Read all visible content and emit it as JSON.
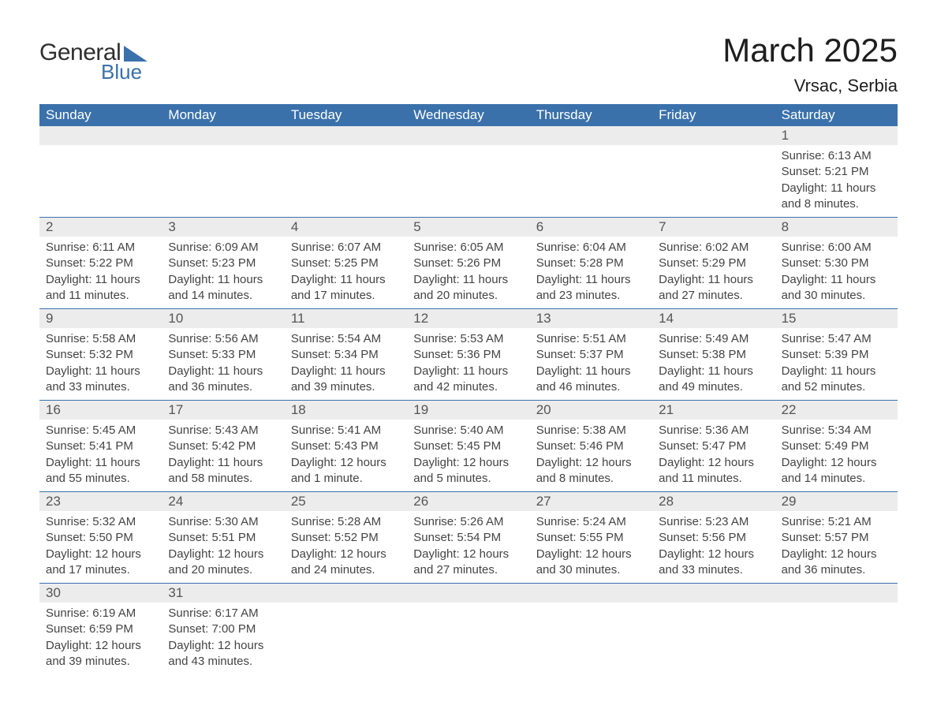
{
  "brand": {
    "word1": "General",
    "word2": "Blue"
  },
  "title": "March 2025",
  "location": "Vrsac, Serbia",
  "colors": {
    "header_bg": "#3a71ab",
    "header_fg": "#ffffff",
    "row_bg": "#ececec",
    "text": "#444444",
    "rule": "#3a71ab"
  },
  "columns": [
    "Sunday",
    "Monday",
    "Tuesday",
    "Wednesday",
    "Thursday",
    "Friday",
    "Saturday"
  ],
  "weeks": [
    [
      null,
      null,
      null,
      null,
      null,
      null,
      {
        "n": "1",
        "sr": "Sunrise: 6:13 AM",
        "ss": "Sunset: 5:21 PM",
        "dl": "Daylight: 11 hours and 8 minutes."
      }
    ],
    [
      {
        "n": "2",
        "sr": "Sunrise: 6:11 AM",
        "ss": "Sunset: 5:22 PM",
        "dl": "Daylight: 11 hours and 11 minutes."
      },
      {
        "n": "3",
        "sr": "Sunrise: 6:09 AM",
        "ss": "Sunset: 5:23 PM",
        "dl": "Daylight: 11 hours and 14 minutes."
      },
      {
        "n": "4",
        "sr": "Sunrise: 6:07 AM",
        "ss": "Sunset: 5:25 PM",
        "dl": "Daylight: 11 hours and 17 minutes."
      },
      {
        "n": "5",
        "sr": "Sunrise: 6:05 AM",
        "ss": "Sunset: 5:26 PM",
        "dl": "Daylight: 11 hours and 20 minutes."
      },
      {
        "n": "6",
        "sr": "Sunrise: 6:04 AM",
        "ss": "Sunset: 5:28 PM",
        "dl": "Daylight: 11 hours and 23 minutes."
      },
      {
        "n": "7",
        "sr": "Sunrise: 6:02 AM",
        "ss": "Sunset: 5:29 PM",
        "dl": "Daylight: 11 hours and 27 minutes."
      },
      {
        "n": "8",
        "sr": "Sunrise: 6:00 AM",
        "ss": "Sunset: 5:30 PM",
        "dl": "Daylight: 11 hours and 30 minutes."
      }
    ],
    [
      {
        "n": "9",
        "sr": "Sunrise: 5:58 AM",
        "ss": "Sunset: 5:32 PM",
        "dl": "Daylight: 11 hours and 33 minutes."
      },
      {
        "n": "10",
        "sr": "Sunrise: 5:56 AM",
        "ss": "Sunset: 5:33 PM",
        "dl": "Daylight: 11 hours and 36 minutes."
      },
      {
        "n": "11",
        "sr": "Sunrise: 5:54 AM",
        "ss": "Sunset: 5:34 PM",
        "dl": "Daylight: 11 hours and 39 minutes."
      },
      {
        "n": "12",
        "sr": "Sunrise: 5:53 AM",
        "ss": "Sunset: 5:36 PM",
        "dl": "Daylight: 11 hours and 42 minutes."
      },
      {
        "n": "13",
        "sr": "Sunrise: 5:51 AM",
        "ss": "Sunset: 5:37 PM",
        "dl": "Daylight: 11 hours and 46 minutes."
      },
      {
        "n": "14",
        "sr": "Sunrise: 5:49 AM",
        "ss": "Sunset: 5:38 PM",
        "dl": "Daylight: 11 hours and 49 minutes."
      },
      {
        "n": "15",
        "sr": "Sunrise: 5:47 AM",
        "ss": "Sunset: 5:39 PM",
        "dl": "Daylight: 11 hours and 52 minutes."
      }
    ],
    [
      {
        "n": "16",
        "sr": "Sunrise: 5:45 AM",
        "ss": "Sunset: 5:41 PM",
        "dl": "Daylight: 11 hours and 55 minutes."
      },
      {
        "n": "17",
        "sr": "Sunrise: 5:43 AM",
        "ss": "Sunset: 5:42 PM",
        "dl": "Daylight: 11 hours and 58 minutes."
      },
      {
        "n": "18",
        "sr": "Sunrise: 5:41 AM",
        "ss": "Sunset: 5:43 PM",
        "dl": "Daylight: 12 hours and 1 minute."
      },
      {
        "n": "19",
        "sr": "Sunrise: 5:40 AM",
        "ss": "Sunset: 5:45 PM",
        "dl": "Daylight: 12 hours and 5 minutes."
      },
      {
        "n": "20",
        "sr": "Sunrise: 5:38 AM",
        "ss": "Sunset: 5:46 PM",
        "dl": "Daylight: 12 hours and 8 minutes."
      },
      {
        "n": "21",
        "sr": "Sunrise: 5:36 AM",
        "ss": "Sunset: 5:47 PM",
        "dl": "Daylight: 12 hours and 11 minutes."
      },
      {
        "n": "22",
        "sr": "Sunrise: 5:34 AM",
        "ss": "Sunset: 5:49 PM",
        "dl": "Daylight: 12 hours and 14 minutes."
      }
    ],
    [
      {
        "n": "23",
        "sr": "Sunrise: 5:32 AM",
        "ss": "Sunset: 5:50 PM",
        "dl": "Daylight: 12 hours and 17 minutes."
      },
      {
        "n": "24",
        "sr": "Sunrise: 5:30 AM",
        "ss": "Sunset: 5:51 PM",
        "dl": "Daylight: 12 hours and 20 minutes."
      },
      {
        "n": "25",
        "sr": "Sunrise: 5:28 AM",
        "ss": "Sunset: 5:52 PM",
        "dl": "Daylight: 12 hours and 24 minutes."
      },
      {
        "n": "26",
        "sr": "Sunrise: 5:26 AM",
        "ss": "Sunset: 5:54 PM",
        "dl": "Daylight: 12 hours and 27 minutes."
      },
      {
        "n": "27",
        "sr": "Sunrise: 5:24 AM",
        "ss": "Sunset: 5:55 PM",
        "dl": "Daylight: 12 hours and 30 minutes."
      },
      {
        "n": "28",
        "sr": "Sunrise: 5:23 AM",
        "ss": "Sunset: 5:56 PM",
        "dl": "Daylight: 12 hours and 33 minutes."
      },
      {
        "n": "29",
        "sr": "Sunrise: 5:21 AM",
        "ss": "Sunset: 5:57 PM",
        "dl": "Daylight: 12 hours and 36 minutes."
      }
    ],
    [
      {
        "n": "30",
        "sr": "Sunrise: 6:19 AM",
        "ss": "Sunset: 6:59 PM",
        "dl": "Daylight: 12 hours and 39 minutes."
      },
      {
        "n": "31",
        "sr": "Sunrise: 6:17 AM",
        "ss": "Sunset: 7:00 PM",
        "dl": "Daylight: 12 hours and 43 minutes."
      },
      null,
      null,
      null,
      null,
      null
    ]
  ]
}
